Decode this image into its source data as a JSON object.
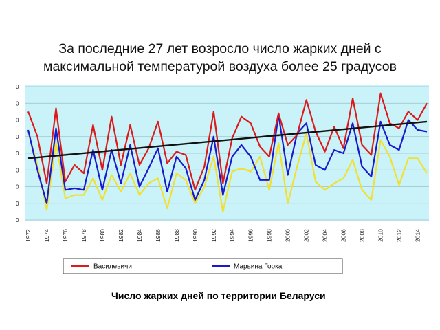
{
  "slide": {
    "title": "За последние 27 лет возросло число жарких дней с максимальной температурой воздуха более 25 градусов",
    "caption": "Число жарких дней по территории Беларуси"
  },
  "colors": {
    "plot_bg": "#c9f3f9",
    "grid": "#9bbfc7",
    "vasilevichi": "#dd1a1a",
    "maryina_gorka": "#1a1acc",
    "third_series": "#f2e030",
    "trend": "#111111"
  },
  "chart_data": {
    "type": "line",
    "x": [
      1972,
      1973,
      1974,
      1975,
      1976,
      1977,
      1978,
      1979,
      1980,
      1981,
      1982,
      1983,
      1984,
      1985,
      1986,
      1987,
      1988,
      1989,
      1990,
      1991,
      1992,
      1993,
      1994,
      1995,
      1996,
      1997,
      1998,
      1999,
      2000,
      2001,
      2002,
      2003,
      2004,
      2005,
      2006,
      2007,
      2008,
      2009,
      2010,
      2011,
      2012,
      2013,
      2014,
      2015
    ],
    "x_tick_labels": [
      "1972",
      "1974",
      "1976",
      "1978",
      "1980",
      "1982",
      "1984",
      "1986",
      "1988",
      "1990",
      "1992",
      "1994",
      "1996",
      "1998",
      "2000",
      "2002",
      "2004",
      "2006",
      "2008",
      "2010",
      "2012",
      "2014"
    ],
    "y_tick_labels": [
      "0",
      "0",
      "0",
      "0",
      "0",
      "0",
      "0",
      "0",
      "0"
    ],
    "ylim": [
      0,
      80
    ],
    "grid": true,
    "legend_position": "bottom",
    "series": [
      {
        "name": "Василевичи",
        "color": "#dd1a1a",
        "values": [
          65,
          50,
          22,
          67,
          23,
          33,
          28,
          57,
          30,
          62,
          33,
          57,
          33,
          43,
          59,
          34,
          41,
          39,
          18,
          32,
          65,
          22,
          49,
          62,
          58,
          44,
          38,
          64,
          45,
          51,
          72,
          53,
          41,
          56,
          43,
          73,
          45,
          39,
          76,
          58,
          55,
          65,
          60,
          70
        ]
      },
      {
        "name": "Марьина Горка",
        "color": "#1a1acc",
        "values": [
          54,
          30,
          10,
          55,
          18,
          19,
          18,
          42,
          18,
          42,
          22,
          45,
          20,
          31,
          43,
          17,
          38,
          31,
          12,
          24,
          50,
          15,
          38,
          45,
          38,
          24,
          24,
          63,
          27,
          52,
          58,
          33,
          30,
          42,
          40,
          58,
          32,
          26,
          59,
          45,
          42,
          60,
          54,
          53
        ]
      },
      {
        "color": "#f2e030",
        "values": [
          53,
          33,
          6,
          47,
          13,
          15,
          15,
          25,
          12,
          27,
          17,
          28,
          15,
          22,
          25,
          7,
          28,
          24,
          10,
          20,
          38,
          5,
          29,
          31,
          29,
          38,
          18,
          46,
          10,
          32,
          52,
          23,
          18,
          22,
          25,
          36,
          18,
          12,
          48,
          38,
          21,
          37,
          37,
          28
        ]
      }
    ],
    "trend": {
      "color": "#111111",
      "start": [
        1972,
        37
      ],
      "end": [
        2015,
        59
      ]
    }
  }
}
